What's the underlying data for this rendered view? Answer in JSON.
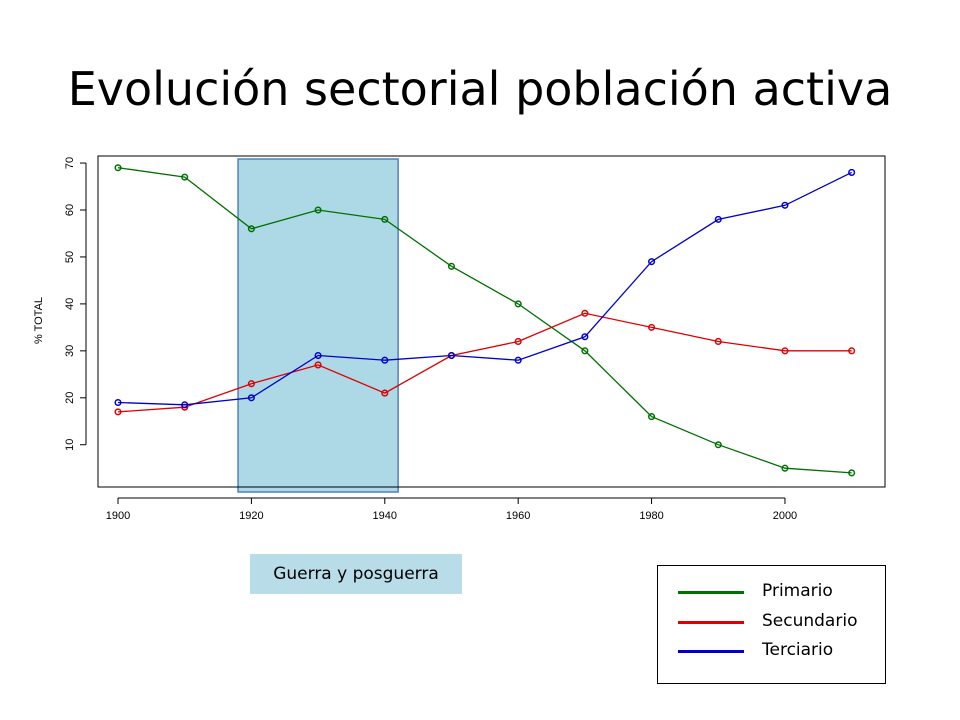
{
  "title": "Evolución sectorial población activa",
  "highlight_label": "Guerra y posguerra",
  "chart_data": {
    "type": "line",
    "title": "",
    "xlabel": "",
    "ylabel": "% TOTAL",
    "x": [
      1900,
      1910,
      1920,
      1930,
      1940,
      1950,
      1960,
      1970,
      1980,
      1990,
      2000,
      2010
    ],
    "xticks": [
      1900,
      1920,
      1940,
      1960,
      1980,
      2000
    ],
    "yticks": [
      10,
      20,
      30,
      40,
      50,
      60,
      70
    ],
    "xlim": [
      1897,
      2015
    ],
    "ylim": [
      1,
      71.5
    ],
    "grid": false,
    "legend_position": "bottom-right",
    "highlight_span": [
      1918,
      1942
    ],
    "series": [
      {
        "name": "Primario",
        "color": "#007000",
        "values": [
          69,
          67,
          56,
          60,
          58,
          48,
          40,
          30,
          16,
          10,
          5,
          4
        ]
      },
      {
        "name": "Secundario",
        "color": "#dd0000",
        "values": [
          17,
          18,
          23,
          27,
          21,
          29,
          32,
          38,
          35,
          32,
          30,
          30
        ]
      },
      {
        "name": "Terciario",
        "color": "#0000cc",
        "values": [
          19,
          18.5,
          20,
          29,
          28,
          29,
          28,
          33,
          49,
          58,
          61,
          68
        ]
      }
    ]
  }
}
